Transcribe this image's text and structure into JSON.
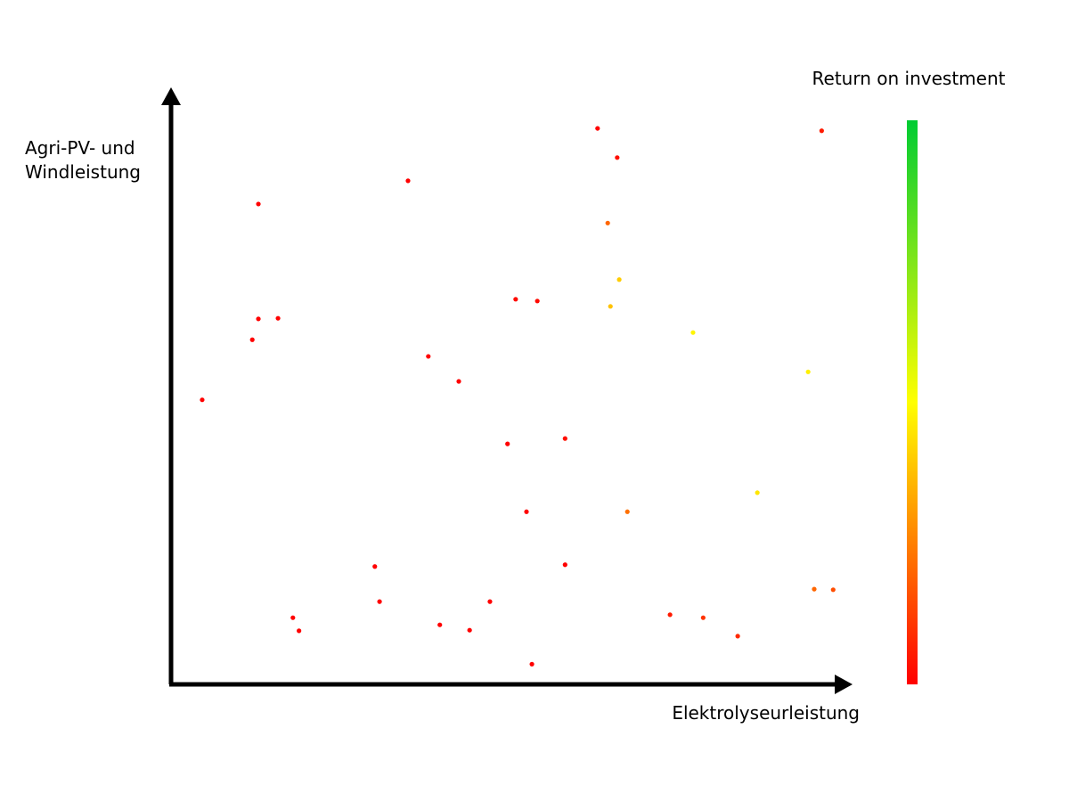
{
  "chart_data": {
    "type": "scatter",
    "colorbar_title": "Return on investment",
    "xlabel": "Elektrolyseurleistung",
    "ylabel": [
      "Agri-PV- und",
      "Windleistung"
    ],
    "xlim": [
      0,
      100
    ],
    "ylim": [
      0,
      100
    ],
    "clim": [
      0,
      100
    ],
    "colormap": [
      "#ff0000",
      "#ffff00",
      "#00cc33"
    ],
    "x": [
      63.0,
      65.9,
      96.1,
      35.0,
      12.9,
      64.5,
      66.2,
      64.9,
      50.9,
      54.1,
      12.9,
      15.8,
      12.0,
      77.1,
      94.1,
      38.0,
      42.5,
      4.6,
      49.7,
      58.2,
      86.6,
      52.5,
      67.4,
      30.1,
      58.2,
      95.0,
      97.8,
      30.8,
      47.1,
      18.0,
      18.9,
      39.7,
      44.1,
      73.7,
      78.6,
      83.7,
      53.3
    ],
    "y": [
      93.4,
      88.5,
      93.0,
      84.6,
      80.7,
      77.5,
      68.0,
      63.5,
      64.7,
      64.4,
      61.4,
      61.5,
      57.9,
      59.1,
      52.5,
      55.1,
      50.9,
      47.8,
      40.4,
      41.3,
      32.2,
      29.0,
      29.0,
      19.8,
      20.1,
      16.0,
      15.9,
      13.9,
      13.9,
      11.2,
      9.0,
      10.0,
      9.1,
      11.7,
      11.2,
      8.1,
      3.4
    ],
    "c": [
      0,
      3,
      5,
      0,
      0,
      20,
      40,
      38,
      2,
      2,
      0,
      0,
      0,
      48,
      47,
      0,
      0,
      0,
      0,
      3,
      45,
      0,
      22,
      0,
      0,
      20,
      15,
      0,
      0,
      0,
      0,
      0,
      0,
      5,
      10,
      8,
      0
    ]
  }
}
